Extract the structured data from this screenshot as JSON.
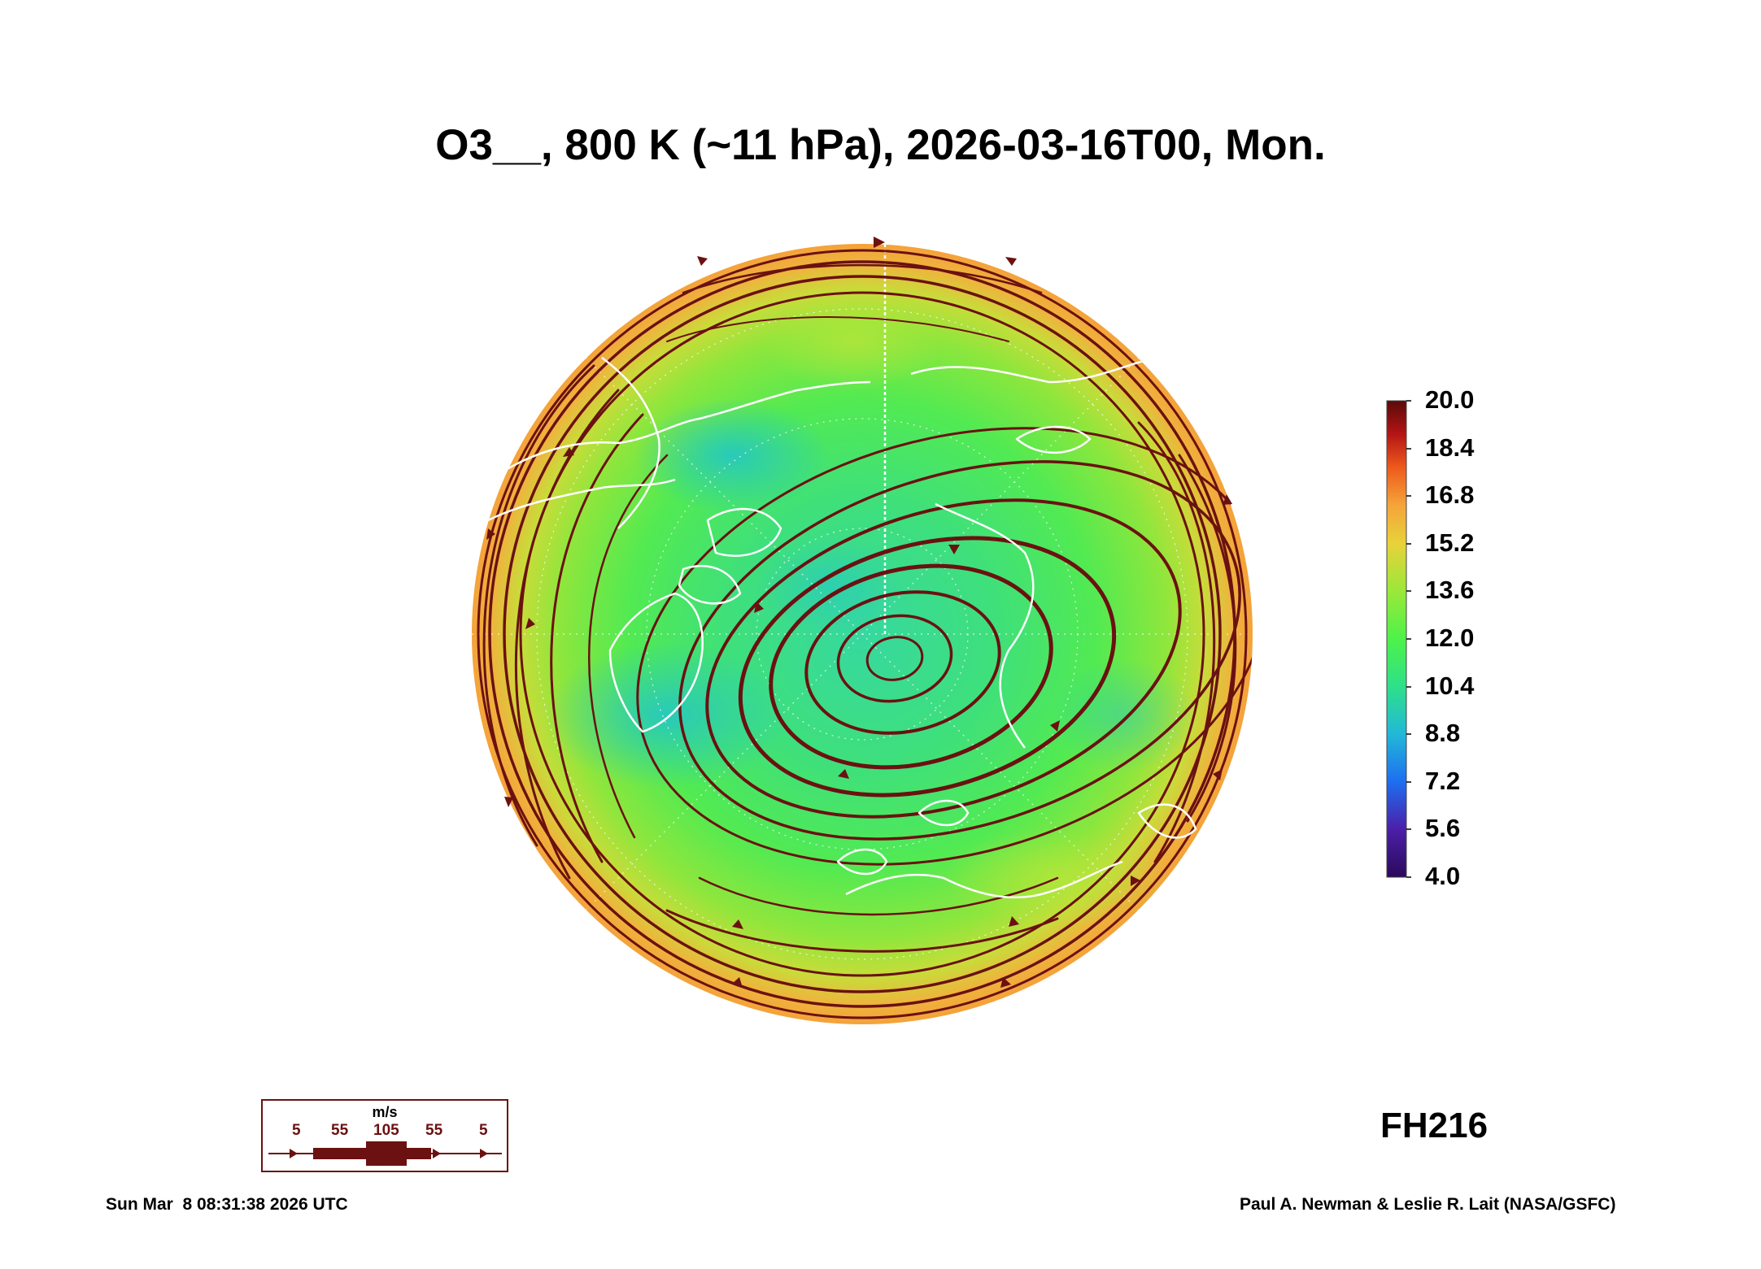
{
  "title": "O3__, 800 K (~11 hPa), 2026-03-16T00, Mon.",
  "forecast_hour": "FH216",
  "footer": {
    "timestamp": "Sun Mar  8 08:31:38 2026 UTC",
    "credit": "Paul A. Newman & Leslie R. Lait (NASA/GSFC)"
  },
  "colorbar": {
    "labels": [
      "20.0",
      "18.4",
      "16.8",
      "15.2",
      "13.6",
      "12.0",
      "10.4",
      "8.8",
      "7.2",
      "5.6",
      "4.0"
    ],
    "min": 4.0,
    "max": 20.0,
    "colors": [
      "#2a0a5c",
      "#4b1fa8",
      "#1e6ef0",
      "#22b8d8",
      "#2ee08a",
      "#4ef24a",
      "#9ae83a",
      "#e8d23a",
      "#f4a53a",
      "#ee5a1c",
      "#b51414",
      "#5a0a0a"
    ]
  },
  "wind_legend": {
    "unit": "m/s",
    "speeds": [
      "5",
      "55",
      "105",
      "55",
      "5"
    ]
  },
  "map": {
    "projection": "north polar stereographic",
    "field": "ozone mixing ratio",
    "streamline_color": "#6b1111",
    "coastline_color": "#ffffff"
  }
}
